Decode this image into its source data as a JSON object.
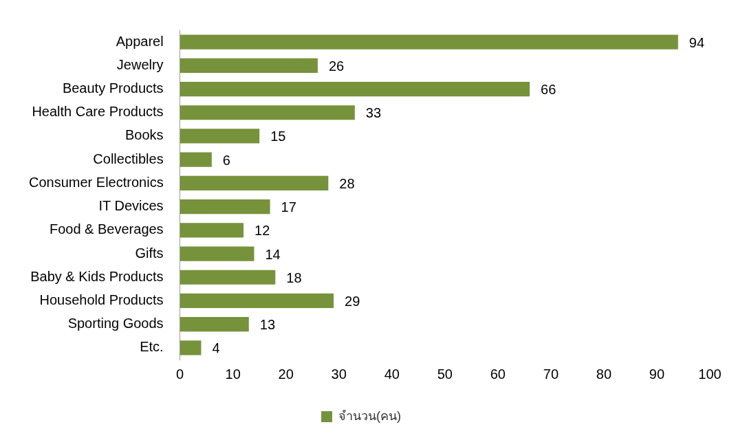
{
  "chart_data": {
    "type": "bar",
    "orientation": "horizontal",
    "categories": [
      "Apparel",
      "Jewelry",
      "Beauty Products",
      "Health Care Products",
      "Books",
      "Collectibles",
      "Consumer Electronics",
      "IT Devices",
      "Food & Beverages",
      "Gifts",
      "Baby & Kids Products",
      "Household Products",
      "Sporting Goods",
      "Etc."
    ],
    "series": [
      {
        "name": "จำนวน(คน)",
        "color": "#76933c",
        "values": [
          94,
          26,
          66,
          33,
          15,
          6,
          28,
          17,
          12,
          14,
          18,
          29,
          13,
          4
        ]
      }
    ],
    "xlim": [
      0,
      100
    ],
    "xticks": [
      0,
      10,
      20,
      30,
      40,
      50,
      60,
      70,
      80,
      90,
      100
    ],
    "data_labels": true,
    "grid": false,
    "legend": "bottom"
  }
}
